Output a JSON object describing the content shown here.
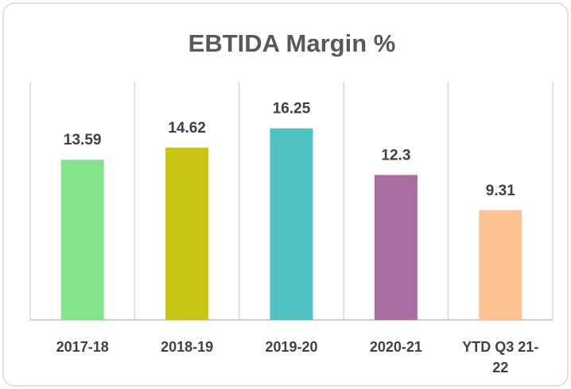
{
  "chart_data": {
    "type": "bar",
    "title": "EBTIDA Margin %",
    "categories": [
      "2017-18",
      "2018-19",
      "2019-20",
      "2020-21",
      "YTD Q3 21-22"
    ],
    "values": [
      13.59,
      14.62,
      16.25,
      12.3,
      9.31
    ],
    "colors": [
      "#86e38e",
      "#c8c514",
      "#4fc3c3",
      "#a86ea1",
      "#f9c394"
    ],
    "ylim": [
      0,
      20
    ]
  }
}
